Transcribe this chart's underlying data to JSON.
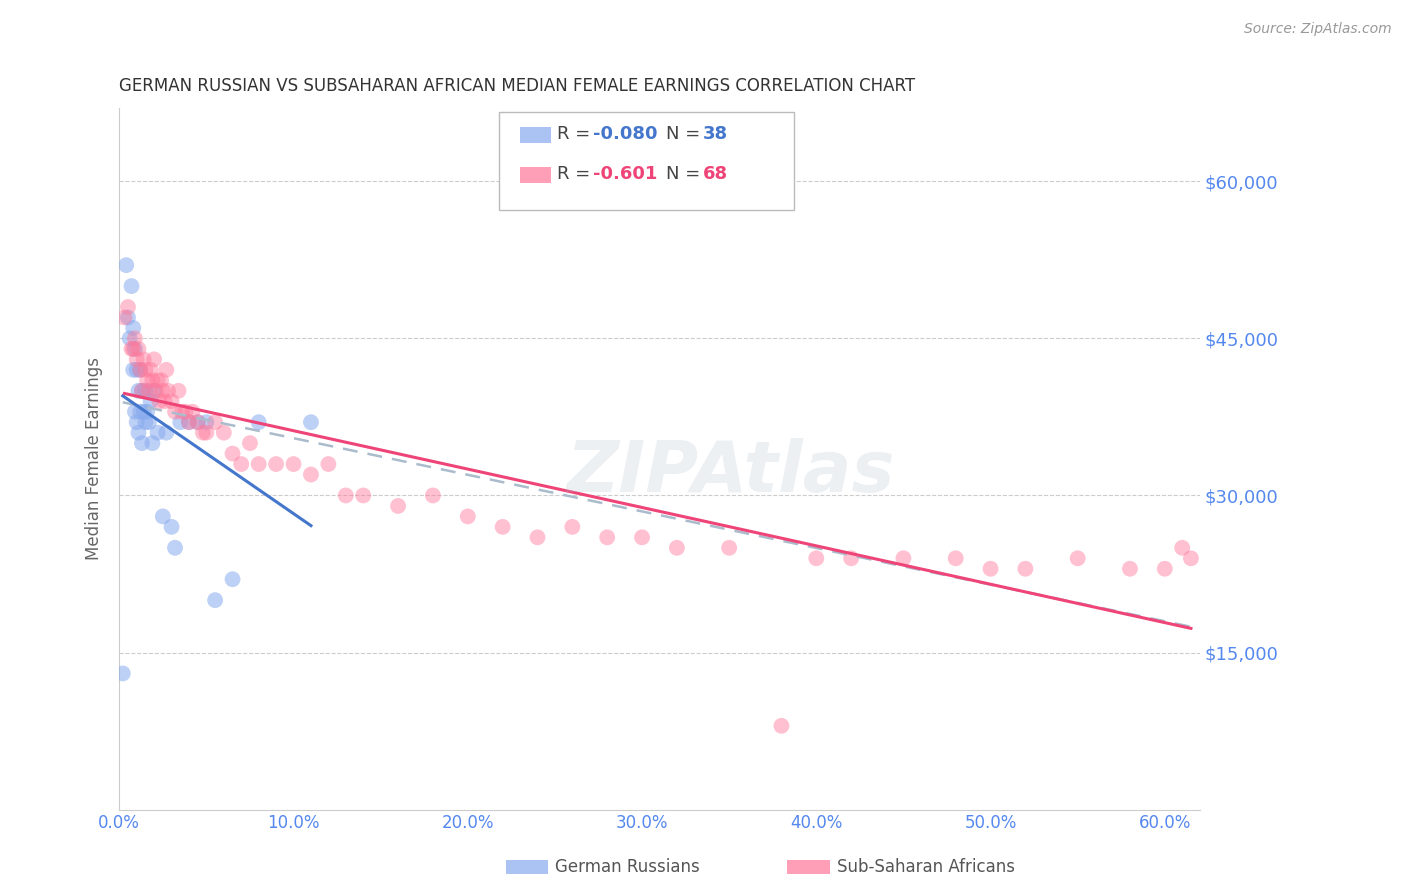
{
  "title": "GERMAN RUSSIAN VS SUBSAHARAN AFRICAN MEDIAN FEMALE EARNINGS CORRELATION CHART",
  "source": "Source: ZipAtlas.com",
  "ylabel": "Median Female Earnings",
  "xlabel_ticks": [
    "0.0%",
    "10.0%",
    "20.0%",
    "30.0%",
    "40.0%",
    "50.0%",
    "60.0%"
  ],
  "ytick_labels": [
    "$15,000",
    "$30,000",
    "$45,000",
    "$60,000"
  ],
  "ytick_values": [
    15000,
    30000,
    45000,
    60000
  ],
  "ylim": [
    0,
    67000
  ],
  "xlim": [
    0.0,
    0.62
  ],
  "ytick_color": "#5588ee",
  "xtick_color": "#5588ee",
  "title_color": "#333333",
  "source_color": "#999999",
  "legend_R1": "-0.080",
  "legend_N1": "38",
  "legend_R2": "-0.601",
  "legend_N2": "68",
  "blue_color": "#88aaee",
  "pink_color": "#ff7799",
  "blue_line_color": "#4477cc",
  "pink_line_color": "#ee4477",
  "dashed_line_color": "#aabbcc",
  "legend_label1": "German Russians",
  "legend_label2": "Sub-Saharan Africans",
  "blue_scatter_x": [
    0.002,
    0.004,
    0.005,
    0.006,
    0.007,
    0.008,
    0.008,
    0.009,
    0.009,
    0.01,
    0.01,
    0.011,
    0.011,
    0.012,
    0.012,
    0.013,
    0.013,
    0.014,
    0.015,
    0.015,
    0.016,
    0.017,
    0.018,
    0.019,
    0.02,
    0.022,
    0.025,
    0.027,
    0.03,
    0.032,
    0.035,
    0.04,
    0.045,
    0.05,
    0.055,
    0.065,
    0.08,
    0.11
  ],
  "blue_scatter_y": [
    13000,
    52000,
    47000,
    45000,
    50000,
    46000,
    42000,
    44000,
    38000,
    42000,
    37000,
    40000,
    36000,
    42000,
    38000,
    40000,
    35000,
    38000,
    40000,
    37000,
    38000,
    37000,
    39000,
    35000,
    40000,
    36000,
    28000,
    36000,
    27000,
    25000,
    37000,
    37000,
    37000,
    37000,
    20000,
    22000,
    37000,
    37000
  ],
  "pink_scatter_x": [
    0.003,
    0.005,
    0.007,
    0.008,
    0.009,
    0.01,
    0.011,
    0.012,
    0.013,
    0.014,
    0.015,
    0.016,
    0.017,
    0.018,
    0.019,
    0.02,
    0.021,
    0.022,
    0.023,
    0.024,
    0.025,
    0.026,
    0.027,
    0.028,
    0.03,
    0.032,
    0.034,
    0.036,
    0.038,
    0.04,
    0.042,
    0.045,
    0.048,
    0.05,
    0.055,
    0.06,
    0.065,
    0.07,
    0.075,
    0.08,
    0.09,
    0.1,
    0.11,
    0.12,
    0.13,
    0.14,
    0.16,
    0.18,
    0.2,
    0.22,
    0.24,
    0.26,
    0.28,
    0.3,
    0.32,
    0.35,
    0.38,
    0.4,
    0.42,
    0.45,
    0.48,
    0.5,
    0.52,
    0.55,
    0.58,
    0.6,
    0.61,
    0.615
  ],
  "pink_scatter_y": [
    47000,
    48000,
    44000,
    44000,
    45000,
    43000,
    44000,
    42000,
    40000,
    43000,
    42000,
    41000,
    40000,
    42000,
    41000,
    43000,
    40000,
    41000,
    39000,
    41000,
    40000,
    39000,
    42000,
    40000,
    39000,
    38000,
    40000,
    38000,
    38000,
    37000,
    38000,
    37000,
    36000,
    36000,
    37000,
    36000,
    34000,
    33000,
    35000,
    33000,
    33000,
    33000,
    32000,
    33000,
    30000,
    30000,
    29000,
    30000,
    28000,
    27000,
    26000,
    27000,
    26000,
    26000,
    25000,
    25000,
    8000,
    24000,
    24000,
    24000,
    24000,
    23000,
    23000,
    24000,
    23000,
    23000,
    25000,
    24000
  ]
}
